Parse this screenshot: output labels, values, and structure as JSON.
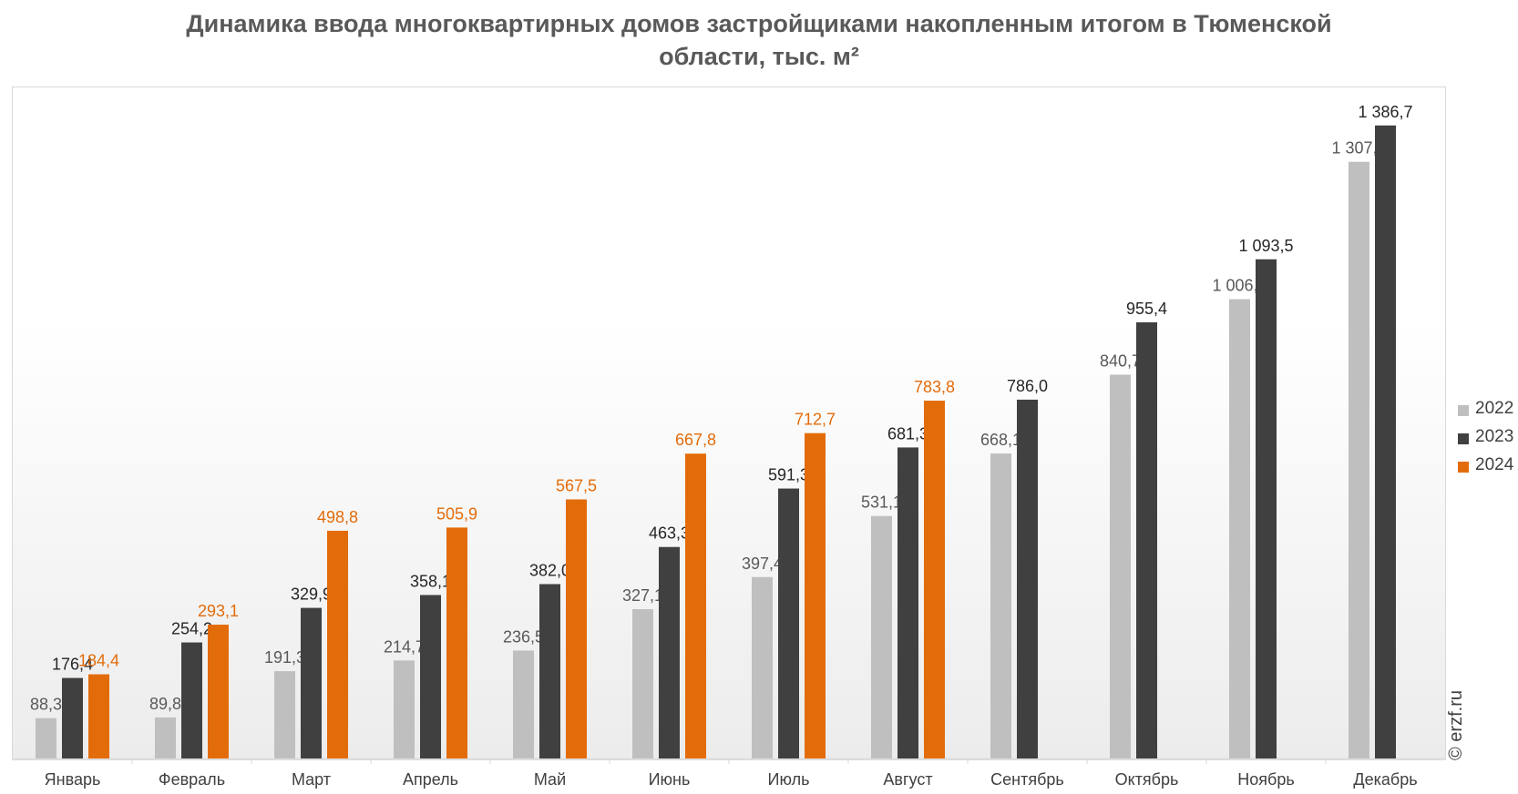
{
  "title": [
    "Динамика ввода многоквартирных домов застройщиками накопленным итогом в Тюменской",
    "области, тыс. м²"
  ],
  "watermark": "© erzf.ru",
  "colors": {
    "2022": "#bfbfbf",
    "2023": "#404040",
    "2024": "#e36c0a"
  },
  "chart_data": {
    "type": "bar",
    "title": "Динамика ввода многоквартирных домов застройщиками накопленным итогом в Тюменской области, тыс. м²",
    "xlabel": "",
    "ylabel": "",
    "ylim": [
      0,
      1470
    ],
    "grid": false,
    "legend_position": "right",
    "categories": [
      "Январь",
      "Февраль",
      "Март",
      "Апрель",
      "Май",
      "Июнь",
      "Июль",
      "Август",
      "Сентябрь",
      "Октябрь",
      "Ноябрь",
      "Декабрь"
    ],
    "series": [
      {
        "name": "2022",
        "color": "#bfbfbf",
        "label_color": "#595959",
        "values": [
          88.3,
          89.8,
          191.3,
          214.7,
          236.5,
          327.1,
          397.4,
          531.1,
          668.1,
          840.7,
          1006.1,
          1307.0
        ],
        "labels": [
          "88,3",
          "89,8",
          "191,3",
          "214,7",
          "236,5",
          "327,1",
          "397,4",
          "531,1",
          "668,1",
          "840,7",
          "1 006,1",
          "1 307,0"
        ]
      },
      {
        "name": "2023",
        "color": "#404040",
        "label_color": "#262626",
        "values": [
          176.4,
          254.2,
          329.9,
          358.1,
          382.0,
          463.3,
          591.3,
          681.3,
          786.0,
          955.4,
          1093.5,
          1386.7
        ],
        "labels": [
          "176,4",
          "254,2",
          "329,9",
          "358,1",
          "382,0",
          "463,3",
          "591,3",
          "681,3",
          "786,0",
          "955,4",
          "1 093,5",
          "1 386,7"
        ]
      },
      {
        "name": "2024",
        "color": "#e36c0a",
        "label_color": "#e36c0a",
        "values": [
          184.4,
          293.1,
          498.8,
          505.9,
          567.5,
          667.8,
          712.7,
          783.8,
          null,
          null,
          null,
          null
        ],
        "labels": [
          "184,4",
          "293,1",
          "498,8",
          "505,9",
          "567,5",
          "667,8",
          "712,7",
          "783,8",
          "",
          "",
          "",
          ""
        ]
      }
    ]
  }
}
